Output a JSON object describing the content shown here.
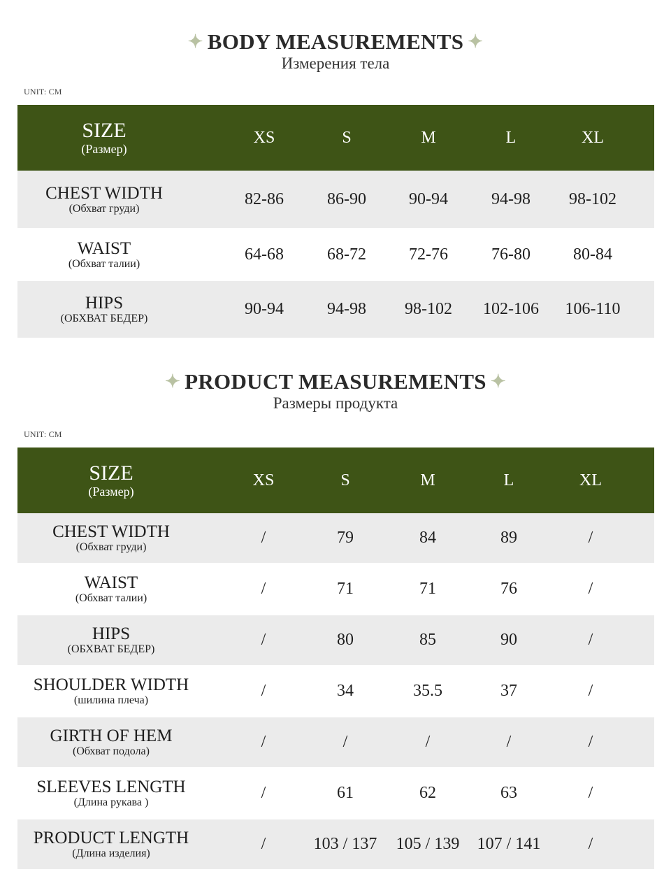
{
  "body_section": {
    "title": "BODY MEASUREMENTS",
    "subtitle": "Измерения тела",
    "unit": "UNIT: CM",
    "header": {
      "label": "SIZE",
      "label_sub": "(Размер)",
      "sizes": [
        "XS",
        "S",
        "M",
        "L",
        "XL"
      ]
    },
    "rows": [
      {
        "label": "CHEST WIDTH",
        "sub": "(Обхват груди)",
        "values": [
          "82-86",
          "86-90",
          "90-94",
          "94-98",
          "98-102"
        ]
      },
      {
        "label": "WAIST",
        "sub": "(Обхват талии)",
        "values": [
          "64-68",
          "68-72",
          "72-76",
          "76-80",
          "80-84"
        ]
      },
      {
        "label": "HIPS",
        "sub": "(ОБХВАТ БЕДЕР)",
        "values": [
          "90-94",
          "94-98",
          "98-102",
          "102-106",
          "106-110"
        ]
      }
    ]
  },
  "product_section": {
    "title": "PRODUCT MEASUREMENTS",
    "subtitle": "Размеры продукта",
    "unit": "UNIT: CM",
    "header": {
      "label": "SIZE",
      "label_sub": "(Размер)",
      "sizes": [
        "XS",
        "S",
        "M",
        "L",
        "XL"
      ]
    },
    "rows": [
      {
        "label": "CHEST WIDTH",
        "sub": "(Обхват груди)",
        "values": [
          "/",
          "79",
          "84",
          "89",
          "/"
        ]
      },
      {
        "label": "WAIST",
        "sub": "(Обхват талии)",
        "values": [
          "/",
          "71",
          "71",
          "76",
          "/"
        ]
      },
      {
        "label": "HIPS",
        "sub": "(ОБХВАТ БЕДЕР)",
        "values": [
          "/",
          "80",
          "85",
          "90",
          "/"
        ]
      },
      {
        "label": "SHOULDER WIDTH",
        "sub": "(шилина плеча)",
        "values": [
          "/",
          "34",
          "35.5",
          "37",
          "/"
        ]
      },
      {
        "label": "GIRTH OF HEM",
        "sub": "(Обхват подола)",
        "values": [
          "/",
          "/",
          "/",
          "/",
          "/"
        ]
      },
      {
        "label": "SLEEVES LENGTH",
        "sub": "(Длина рукава )",
        "values": [
          "/",
          "61",
          "62",
          "63",
          "/"
        ]
      },
      {
        "label": "PRODUCT LENGTH",
        "sub": "(Длина изделия)",
        "values": [
          "/",
          "103 / 137",
          "105 / 139",
          "107 / 141",
          "/"
        ]
      }
    ]
  },
  "colors": {
    "header_green": "#3e5416",
    "row_shade": "#ebebeb",
    "star": "#b9c2a3"
  },
  "icons": {
    "title_ornament": "sparkle-star-icon"
  }
}
